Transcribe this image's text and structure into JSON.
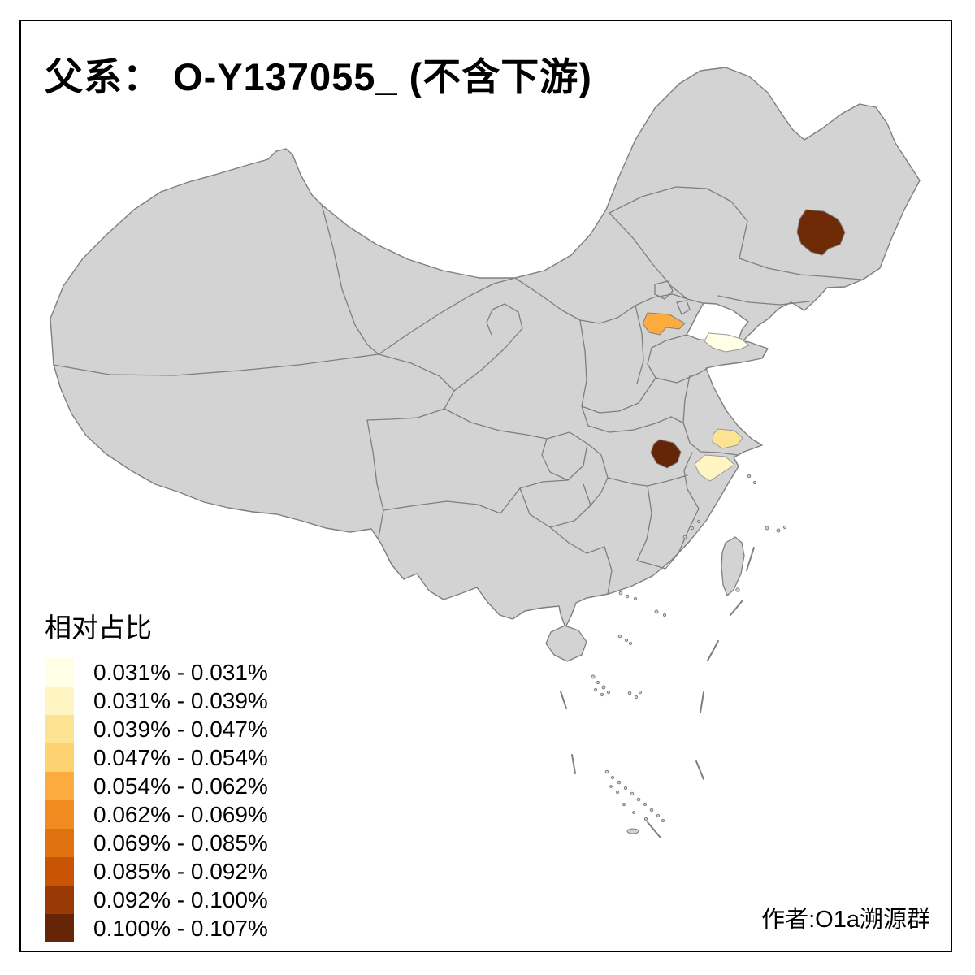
{
  "title": "父系： O-Y137055_ (不含下游)",
  "attribution": "作者:O1a溯源群",
  "legend": {
    "title": "相对占比",
    "items": [
      {
        "label": "0.031% - 0.031%",
        "color": "#ffffe5"
      },
      {
        "label": "0.031% - 0.039%",
        "color": "#fef5c3"
      },
      {
        "label": "0.039% - 0.047%",
        "color": "#fbe392"
      },
      {
        "label": "0.047% - 0.054%",
        "color": "#fdd271"
      },
      {
        "label": "0.054% - 0.062%",
        "color": "#fcab3e"
      },
      {
        "label": "0.062% - 0.069%",
        "color": "#f28b20"
      },
      {
        "label": "0.069% - 0.085%",
        "color": "#e17212"
      },
      {
        "label": "0.085% - 0.092%",
        "color": "#c85404"
      },
      {
        "label": "0.092% - 0.100%",
        "color": "#993a04"
      },
      {
        "label": "0.100% - 0.107%",
        "color": "#662506"
      }
    ]
  },
  "map": {
    "land_color": "#d3d3d3",
    "border_color": "#7f7f7f",
    "sea_color": "#ffffff",
    "regions": [
      {
        "color": "#6f2a08"
      },
      {
        "color": "#fcab3e"
      },
      {
        "color": "#ffffe5"
      },
      {
        "color": "#662506"
      },
      {
        "color": "#fbe392"
      },
      {
        "color": "#fef5c3"
      }
    ]
  }
}
